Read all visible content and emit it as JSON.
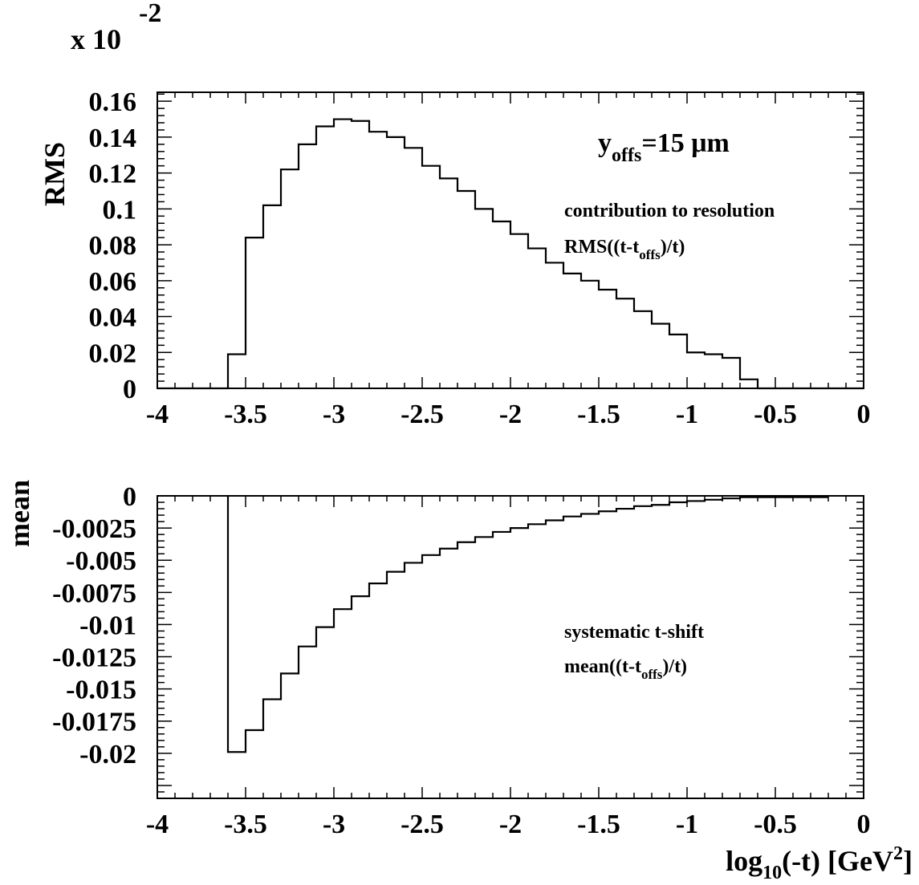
{
  "chart_data": [
    {
      "type": "histogram",
      "ylabel": "RMS",
      "multiplier_label": {
        "base": "x 10",
        "exponent": "-2"
      },
      "annotations": {
        "offset": {
          "main": "y",
          "sub": "offs",
          "rest": "=15 μm"
        },
        "line1": "contribution to resolution",
        "line2": {
          "pre": "RMS((t-t",
          "sub": "offs",
          "post": ")/t)"
        }
      },
      "xlim": [
        -4,
        0
      ],
      "ylim": [
        0,
        0.165
      ],
      "x_ticks": [
        "-4",
        "-3.5",
        "-3",
        "-2.5",
        "-2",
        "-1.5",
        "-1",
        "-0.5",
        "0"
      ],
      "y_ticks": [
        "0",
        "0.02",
        "0.04",
        "0.06",
        "0.08",
        "0.1",
        "0.12",
        "0.14",
        "0.16"
      ],
      "bin_edges": [
        -4.0,
        -3.9,
        -3.8,
        -3.7,
        -3.6,
        -3.5,
        -3.4,
        -3.3,
        -3.2,
        -3.1,
        -3.0,
        -2.9,
        -2.8,
        -2.7,
        -2.6,
        -2.5,
        -2.4,
        -2.3,
        -2.2,
        -2.1,
        -2.0,
        -1.9,
        -1.8,
        -1.7,
        -1.6,
        -1.5,
        -1.4,
        -1.3,
        -1.2,
        -1.1,
        -1.0,
        -0.9,
        -0.8,
        -0.7,
        -0.6,
        -0.5,
        -0.4,
        -0.3,
        -0.2,
        -0.1,
        0.0
      ],
      "values": [
        0,
        0,
        0,
        0,
        0.019,
        0.084,
        0.102,
        0.122,
        0.136,
        0.146,
        0.15,
        0.149,
        0.143,
        0.14,
        0.134,
        0.124,
        0.117,
        0.11,
        0.1,
        0.093,
        0.086,
        0.078,
        0.07,
        0.064,
        0.06,
        0.055,
        0.05,
        0.043,
        0.036,
        0.03,
        0.02,
        0.019,
        0.017,
        0.005,
        0,
        0,
        0,
        0,
        0,
        0
      ]
    },
    {
      "type": "histogram",
      "ylabel": "mean",
      "xlabel": {
        "pre": "log",
        "sub": "10",
        "mid": "(-t) [GeV",
        "sup": "2",
        "post": "]"
      },
      "annotations": {
        "line1": "systematic t-shift",
        "line2": {
          "pre": "mean((t-t",
          "sub": "offs",
          "post": ")/t)"
        }
      },
      "xlim": [
        -4,
        0
      ],
      "ylim": [
        -0.0235,
        0
      ],
      "x_ticks": [
        "-4",
        "-3.5",
        "-3",
        "-2.5",
        "-2",
        "-1.5",
        "-1",
        "-0.5",
        "0"
      ],
      "y_ticks": [
        "0",
        "-0.0025",
        "-0.005",
        "-0.0075",
        "-0.01",
        "-0.0125",
        "-0.015",
        "-0.0175",
        "-0.02"
      ],
      "bin_edges": [
        -3.6,
        -3.5,
        -3.4,
        -3.3,
        -3.2,
        -3.1,
        -3.0,
        -2.9,
        -2.8,
        -2.7,
        -2.6,
        -2.5,
        -2.4,
        -2.3,
        -2.2,
        -2.1,
        -2.0,
        -1.9,
        -1.8,
        -1.7,
        -1.6,
        -1.5,
        -1.4,
        -1.3,
        -1.2,
        -1.1,
        -1.0,
        -0.9,
        -0.8,
        -0.7,
        -0.6,
        -0.5,
        -0.4,
        -0.3,
        -0.2
      ],
      "values": [
        -0.0199,
        -0.0182,
        -0.0158,
        -0.0138,
        -0.0117,
        -0.0102,
        -0.0088,
        -0.0078,
        -0.0068,
        -0.0059,
        -0.0052,
        -0.0046,
        -0.0041,
        -0.0036,
        -0.0032,
        -0.0028,
        -0.0025,
        -0.0022,
        -0.0019,
        -0.0016,
        -0.0014,
        -0.0012,
        -0.001,
        -0.0008,
        -0.0007,
        -0.0005,
        -0.0004,
        -0.0003,
        -0.0002,
        -0.0001,
        -0.0001,
        -0.0001,
        -0.0001,
        -0.0001
      ]
    }
  ]
}
